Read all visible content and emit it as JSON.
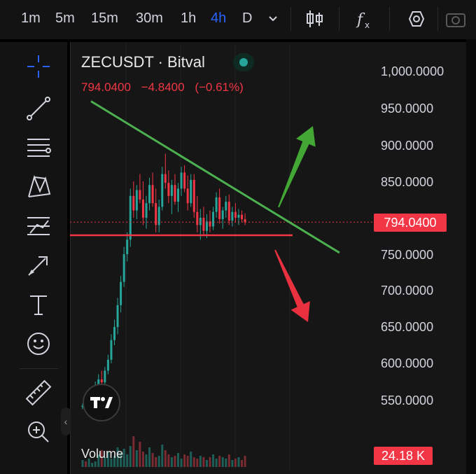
{
  "timeframes": [
    {
      "label": "1m",
      "active": false
    },
    {
      "label": "5m",
      "active": false
    },
    {
      "label": "15m",
      "active": false
    },
    {
      "label": "30m",
      "active": false
    },
    {
      "label": "1h",
      "active": false
    },
    {
      "label": "4h",
      "active": true
    },
    {
      "label": "D",
      "active": false
    }
  ],
  "topbar_icons": [
    "chevron-down-icon",
    "candlestick-icon",
    "indicators-fx-icon",
    "settings-hexagon-icon",
    "camera-icon"
  ],
  "tools": [
    "crosshair-icon",
    "trend-line-icon",
    "fib-retracement-icon",
    "xabcd-pattern-icon",
    "long-position-icon",
    "arrow-brush-icon",
    "text-icon",
    "emoji-icon",
    "ruler-icon",
    "zoom-in-icon"
  ],
  "symbol": {
    "name": "ZECUSDT · Bitval",
    "status": "market-open"
  },
  "quote": {
    "price": "794.0400",
    "change": "−4.8400",
    "change_pct": "(−0.61%)"
  },
  "price_axis": {
    "labels": [
      "1,000.0000",
      "950.0000",
      "900.0000",
      "850.0000",
      "750.0000",
      "700.0000",
      "650.0000",
      "600.0000",
      "550.0000"
    ],
    "current_price": "794.0400"
  },
  "volume": {
    "label": "Volume",
    "value": "24.18 K"
  },
  "colors": {
    "up": "#26a69a",
    "down": "#f23645",
    "trendline": "#4caf50",
    "support": "#f23645",
    "accent": "#2962ff"
  },
  "chart_data": {
    "type": "candlestick",
    "ylim": [
      530,
      1020
    ],
    "current_price": 794.04,
    "candles": [
      [
        540,
        545,
        537,
        542
      ],
      [
        542,
        546,
        538,
        540
      ],
      [
        540,
        548,
        536,
        546
      ],
      [
        546,
        560,
        542,
        556
      ],
      [
        556,
        575,
        552,
        570
      ],
      [
        570,
        585,
        565,
        578
      ],
      [
        578,
        590,
        570,
        574
      ],
      [
        574,
        595,
        568,
        590
      ],
      [
        590,
        612,
        585,
        605
      ],
      [
        605,
        640,
        600,
        632
      ],
      [
        632,
        660,
        625,
        650
      ],
      [
        650,
        690,
        640,
        680
      ],
      [
        680,
        720,
        670,
        712
      ],
      [
        712,
        760,
        705,
        750
      ],
      [
        750,
        780,
        740,
        770
      ],
      [
        770,
        840,
        760,
        830
      ],
      [
        830,
        850,
        800,
        810
      ],
      [
        810,
        845,
        798,
        838
      ],
      [
        838,
        860,
        820,
        825
      ],
      [
        825,
        850,
        790,
        800
      ],
      [
        800,
        830,
        785,
        820
      ],
      [
        820,
        855,
        810,
        845
      ],
      [
        845,
        862,
        815,
        820
      ],
      [
        820,
        840,
        780,
        790
      ],
      [
        790,
        825,
        780,
        815
      ],
      [
        815,
        870,
        810,
        860
      ],
      [
        860,
        888,
        840,
        848
      ],
      [
        848,
        865,
        820,
        830
      ],
      [
        830,
        852,
        805,
        845
      ],
      [
        845,
        860,
        818,
        822
      ],
      [
        822,
        848,
        808,
        840
      ],
      [
        840,
        870,
        830,
        862
      ],
      [
        862,
        872,
        835,
        840
      ],
      [
        840,
        858,
        810,
        820
      ],
      [
        820,
        860,
        815,
        852
      ],
      [
        852,
        860,
        800,
        808
      ],
      [
        808,
        830,
        780,
        790
      ],
      [
        790,
        812,
        770,
        800
      ],
      [
        800,
        815,
        775,
        782
      ],
      [
        782,
        805,
        772,
        795
      ],
      [
        795,
        810,
        780,
        788
      ],
      [
        788,
        815,
        783,
        808
      ],
      [
        808,
        835,
        800,
        828
      ],
      [
        828,
        840,
        792,
        798
      ],
      [
        798,
        815,
        785,
        810
      ],
      [
        810,
        830,
        800,
        822
      ],
      [
        822,
        832,
        790,
        796
      ],
      [
        796,
        815,
        788,
        808
      ],
      [
        808,
        820,
        794,
        800
      ],
      [
        800,
        812,
        790,
        804
      ],
      [
        804,
        810,
        794,
        798
      ],
      [
        798,
        806,
        790,
        794
      ]
    ],
    "volumes": [
      5,
      4,
      6,
      3,
      4,
      9,
      12,
      7,
      11,
      6,
      8,
      14,
      10,
      13,
      9,
      15,
      22,
      12,
      18,
      11,
      9,
      14,
      10,
      7,
      8,
      16,
      12,
      9,
      7,
      8,
      10,
      6,
      9,
      8,
      11,
      7,
      6,
      8,
      7,
      5,
      7,
      9,
      6,
      8,
      7,
      6,
      9,
      5,
      6,
      7,
      5,
      8
    ],
    "trendline_resistance": {
      "from": [
        0,
        960
      ],
      "to": [
        78,
        752
      ]
    },
    "support_line": 776,
    "annotations": [
      {
        "type": "arrow",
        "direction": "up",
        "color": "green"
      },
      {
        "type": "arrow",
        "direction": "down",
        "color": "red"
      }
    ]
  }
}
